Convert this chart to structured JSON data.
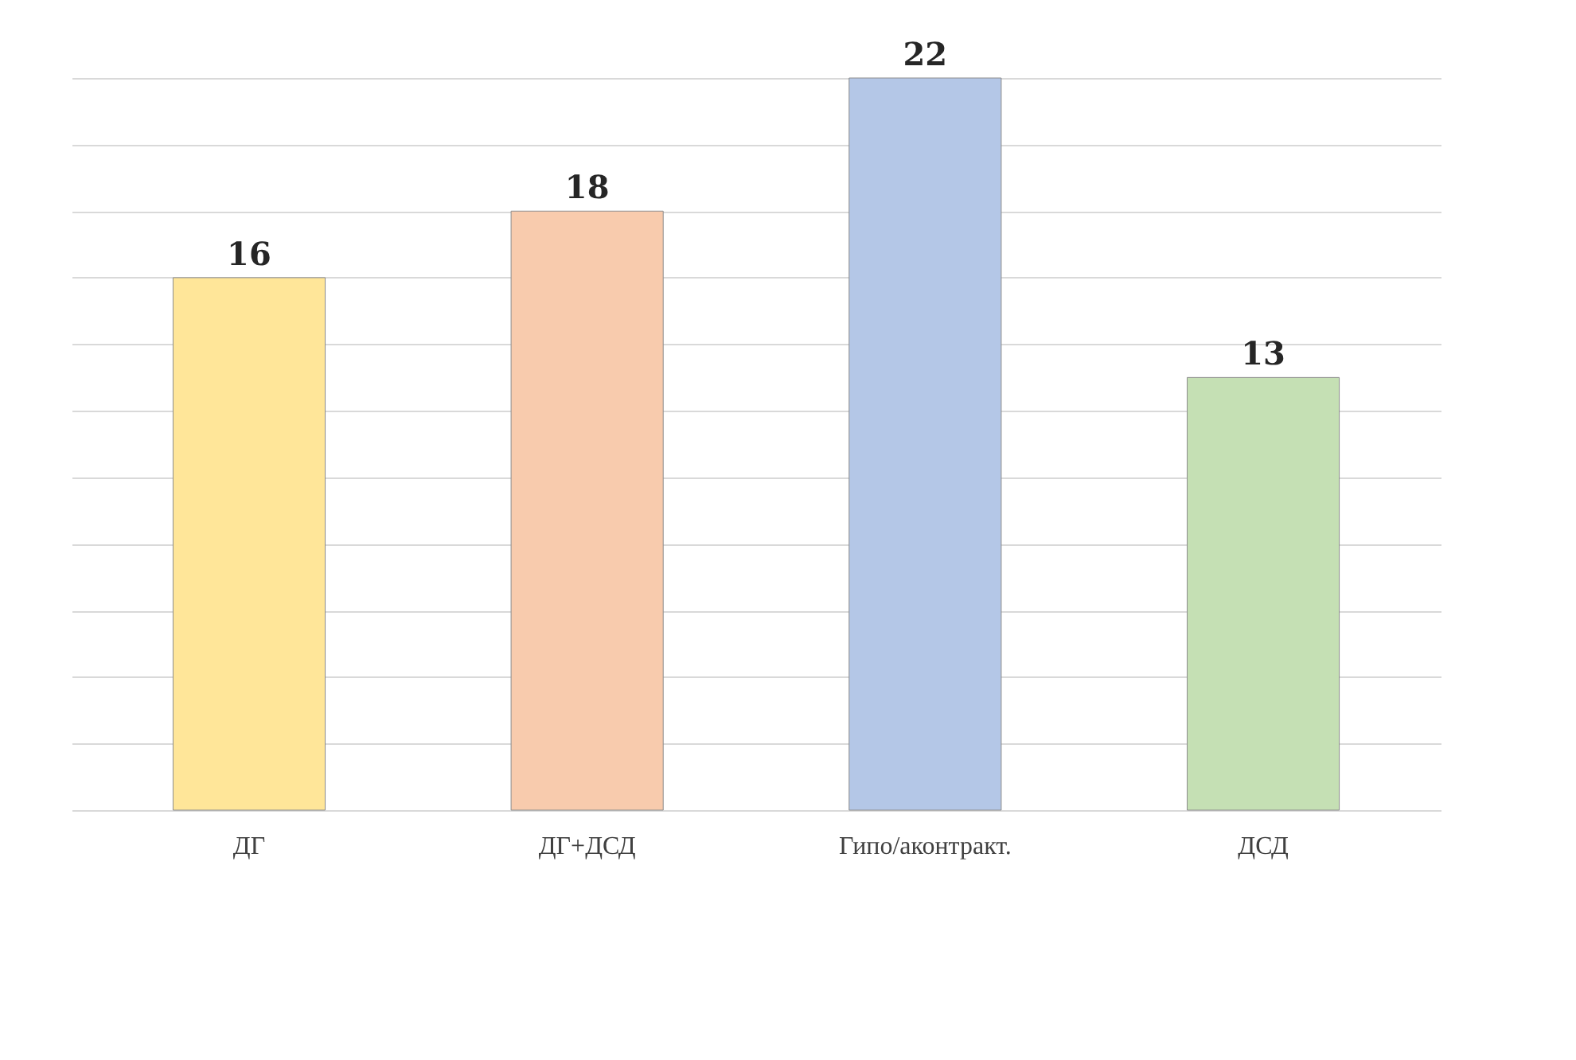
{
  "chart_data": {
    "type": "bar",
    "categories": [
      "ДГ",
      "ДГ+ДСД",
      "Гипо/аконтракт.",
      "ДСД"
    ],
    "values": [
      16,
      18,
      22,
      13
    ],
    "colors": [
      "#ffe699",
      "#f8cbad",
      "#b4c7e7",
      "#c5e0b4"
    ],
    "data_labels": true,
    "grid": "y",
    "tick_labels": "x"
  }
}
